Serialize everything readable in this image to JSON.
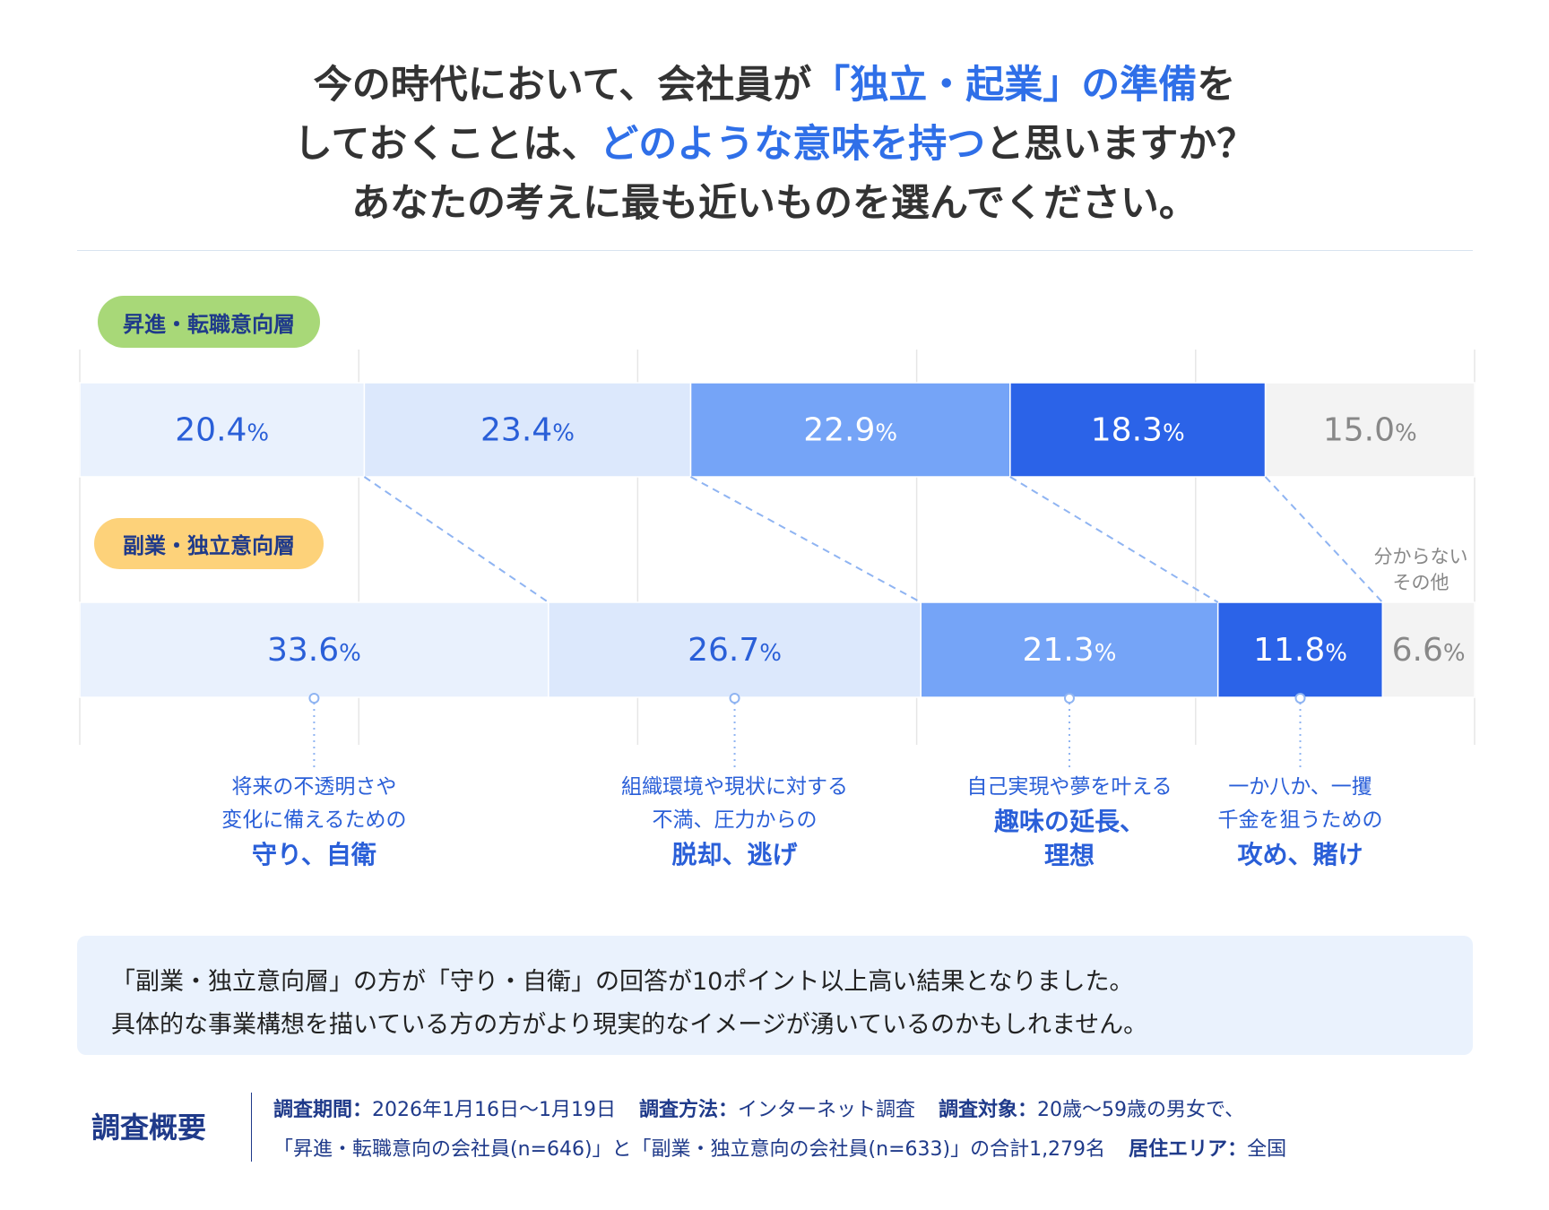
{
  "title": {
    "line1_a": "今の時代において、会社員が",
    "line1_hl": "「独立・起業」の準備",
    "line1_b": "を",
    "line2_a": "しておくことは、",
    "line2_hl": "どのような意味を持つ",
    "line2_b": "と思いますか？",
    "line3": "あなたの考えに最も近いものを選んでください。"
  },
  "chart_data": {
    "type": "bar",
    "orientation": "horizontal-stacked-100",
    "series": [
      {
        "name": "昇進・転職意向層",
        "values": [
          20.4,
          23.4,
          22.9,
          18.3,
          15.0
        ],
        "pill_color": "#a8d878"
      },
      {
        "name": "副業・独立意向層",
        "values": [
          33.6,
          26.7,
          21.3,
          11.8,
          6.6
        ],
        "pill_color": "#fdd27a"
      }
    ],
    "unit": "%",
    "categories": [
      {
        "lines": [
          "将来の不透明さや",
          "変化に備えるための"
        ],
        "bold": "守り、自衛"
      },
      {
        "lines": [
          "組織環境や現状に対する",
          "不満、圧力からの"
        ],
        "bold": "脱却、逃げ"
      },
      {
        "lines": [
          "自己実現や夢を叶える"
        ],
        "bold": "趣味の延長、理想"
      },
      {
        "lines": [
          "一か八か、一攫",
          "千金を狙うための"
        ],
        "bold": "攻め、賭け"
      },
      {
        "lines": [
          "分からない",
          "その他"
        ],
        "bold": ""
      }
    ],
    "colors": [
      "#e9f1fd",
      "#dce8fc",
      "#75a4f7",
      "#2b63e8",
      "#f3f3f3"
    ],
    "label_colors": [
      "#2a5fd8",
      "#2a5fd8",
      "#ffffff",
      "#ffffff",
      "#888888"
    ],
    "xlim": [
      0,
      100
    ],
    "grid": true
  },
  "note": {
    "line1": "「副業・独立意向層」の方が「守り・自衛」の回答が10ポイント以上高い結果となりました。",
    "line2": "具体的な事業構想を描いている方の方がより現実的なイメージが湧いているのかもしれません。"
  },
  "footer": {
    "heading": "調査概要",
    "period_label": "調査期間：",
    "period": "2026年1月16日〜1月19日",
    "method_label": "調査方法：",
    "method": "インターネット調査",
    "target_label": "調査対象：",
    "target": "20歳〜59歳の男女で、",
    "target2": "「昇進・転職意向の会社員(n=646)」と「副業・独立意向の会社員(n=633)」の合計1,279名",
    "area_label": "居住エリア：",
    "area": "全国"
  }
}
